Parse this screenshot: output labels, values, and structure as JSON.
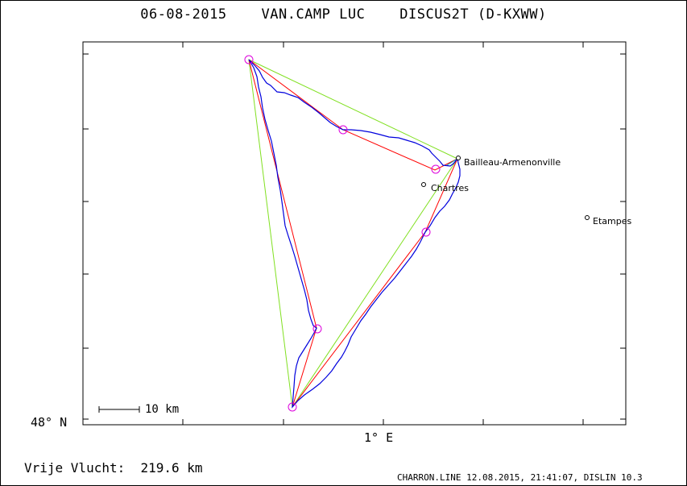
{
  "title": "06-08-2015    VAN.CAMP LUC    DISCUS2T (D-KXWW)",
  "axis": {
    "lat_label": "48° N",
    "lon_label": "1° E"
  },
  "scale_bar": {
    "label": "10 km"
  },
  "towns": [
    {
      "name": "Bailleau-Armenonville"
    },
    {
      "name": "Chartres"
    },
    {
      "name": "Etampes"
    }
  ],
  "distance_label": "Vrije Vlucht:  219.6 km",
  "footer": "CHARRON.LINE 12.08.2015, 21:41:07, DISLIN 10.3",
  "colors": {
    "track": "#0000dd",
    "optimized_route": "#ff0000",
    "triangle": "#80e020",
    "turnpoint": "#dd00dd",
    "start_leg": "#00b0b0"
  },
  "turnpoint_count": 6
}
